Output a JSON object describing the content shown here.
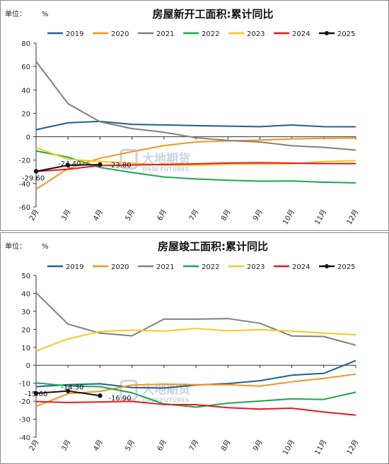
{
  "chart_data": [
    {
      "type": "line",
      "title": "房屋新开工面积:累计同比",
      "unit_label": "单位：",
      "unit": "%",
      "categories": [
        "2月",
        "3月",
        "4月",
        "5月",
        "6月",
        "7月",
        "8月",
        "9月",
        "10月",
        "11月",
        "12月"
      ],
      "ylim": [
        -60,
        80
      ],
      "yticks": [
        -60,
        -40,
        -20,
        0,
        20,
        40,
        60,
        80
      ],
      "grid": false,
      "legend_position": "top",
      "series": [
        {
          "name": "2019",
          "color": "#1f5f93",
          "values": [
            6,
            11.9,
            13.1,
            10.5,
            10.1,
            9.5,
            9.0,
            8.6,
            10.0,
            8.6,
            8.5
          ]
        },
        {
          "name": "2020",
          "color": "#f5941d",
          "values": [
            -44.9,
            -27.2,
            -18.4,
            -12.8,
            -7.6,
            -4.5,
            -3.6,
            -2.9,
            -1.9,
            -1.3,
            -1.2
          ]
        },
        {
          "name": "2021",
          "color": "#808080",
          "values": [
            64.3,
            28.2,
            12.8,
            6.9,
            3.8,
            -0.9,
            -3.2,
            -4.5,
            -7.7,
            -9.1,
            -11.4
          ]
        },
        {
          "name": "2022",
          "color": "#1aa84b",
          "values": [
            -12.2,
            -17.5,
            -26.3,
            -30.6,
            -34.4,
            -36.1,
            -37.2,
            -38.0,
            -37.8,
            -38.9,
            -39.4
          ]
        },
        {
          "name": "2023",
          "color": "#f7c81e",
          "values": [
            -9.4,
            -19.2,
            -21.2,
            -22.6,
            -24.3,
            -24.5,
            -23.5,
            -23.4,
            -23.2,
            -21.2,
            -20.4
          ]
        },
        {
          "name": "2024",
          "color": "#e8171d",
          "values": [
            -29.7,
            -27.8,
            -24.6,
            -24.2,
            -23.7,
            -23.2,
            -22.5,
            -22.2,
            -22.6,
            -23.0,
            -23.0
          ]
        },
        {
          "name": "2025",
          "color": "#111111",
          "values": [
            -29.6,
            -24.4,
            -23.8,
            null,
            null,
            null,
            null,
            null,
            null,
            null,
            null
          ]
        }
      ],
      "data_labels": [
        {
          "series": "2025",
          "index": 0,
          "text": "-29.60"
        },
        {
          "series": "2025",
          "index": 1,
          "text": "-24.40"
        },
        {
          "series": "2025",
          "index": 2,
          "text": "-23.80"
        }
      ],
      "watermark": {
        "name": "大地期货",
        "sub": "DADI FUTURES"
      }
    },
    {
      "type": "line",
      "title": "房屋竣工面积:累计同比",
      "unit_label": "单位：",
      "unit": "%",
      "categories": [
        "2月",
        "3月",
        "4月",
        "5月",
        "6月",
        "7月",
        "8月",
        "9月",
        "10月",
        "11月",
        "12月"
      ],
      "ylim": [
        -40,
        50
      ],
      "yticks": [
        -40,
        -30,
        -20,
        -10,
        0,
        10,
        20,
        30,
        40,
        50
      ],
      "grid": false,
      "legend_position": "top",
      "series": [
        {
          "name": "2019",
          "color": "#1f5f93",
          "values": [
            -11.9,
            -10.8,
            -10.3,
            -12.4,
            -12.7,
            -11.0,
            -10.2,
            -8.6,
            -5.5,
            -4.5,
            2.6
          ]
        },
        {
          "name": "2020",
          "color": "#f5941d",
          "values": [
            -22.9,
            -15.8,
            -14.5,
            -11.0,
            -10.5,
            -10.8,
            -10.8,
            -11.6,
            -9.2,
            -7.3,
            -4.9
          ]
        },
        {
          "name": "2021",
          "color": "#808080",
          "values": [
            40.4,
            22.9,
            17.9,
            16.4,
            25.7,
            25.7,
            26.0,
            23.4,
            16.3,
            16.0,
            11.2
          ]
        },
        {
          "name": "2022",
          "color": "#1aa84b",
          "values": [
            -9.8,
            -11.5,
            -11.9,
            -15.3,
            -21.5,
            -23.3,
            -21.1,
            -19.9,
            -18.7,
            -19.0,
            -15.0
          ]
        },
        {
          "name": "2023",
          "color": "#f7c81e",
          "values": [
            8.0,
            14.7,
            18.8,
            19.6,
            19.0,
            20.5,
            19.2,
            19.8,
            19.0,
            17.9,
            17.0
          ]
        },
        {
          "name": "2024",
          "color": "#e8171d",
          "values": [
            -20.2,
            -20.7,
            -20.4,
            -20.1,
            -21.8,
            -21.9,
            -23.6,
            -24.4,
            -23.9,
            -26.0,
            -27.7
          ]
        },
        {
          "name": "2025",
          "color": "#111111",
          "values": [
            -15.6,
            -14.3,
            -16.9,
            null,
            null,
            null,
            null,
            null,
            null,
            null,
            null
          ]
        }
      ],
      "data_labels": [
        {
          "series": "2025",
          "index": 0,
          "text": "-15.60"
        },
        {
          "series": "2025",
          "index": 1,
          "text": "-14.30"
        },
        {
          "series": "2025",
          "index": 2,
          "text": "-16.90"
        }
      ],
      "watermark": {
        "name": "大地期货",
        "sub": "DADI FUTURES"
      }
    }
  ]
}
